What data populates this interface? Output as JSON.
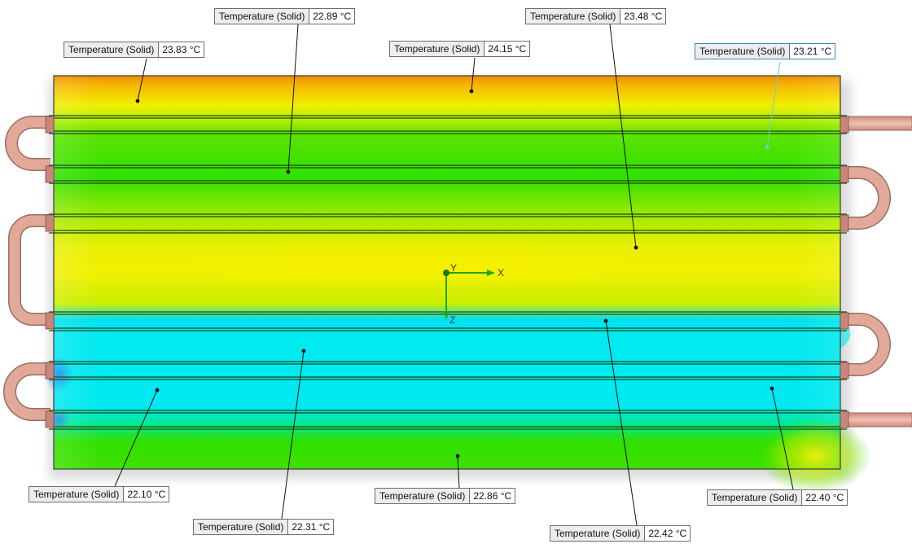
{
  "view": {
    "triad": {
      "x_label": "X",
      "y_label": "Y",
      "z_label": "Z"
    },
    "probes": [
      {
        "name": "Temperature (Solid)",
        "value": "23.83 °C"
      },
      {
        "name": "Temperature (Solid)",
        "value": "22.89 °C"
      },
      {
        "name": "Temperature (Solid)",
        "value": "24.15 °C"
      },
      {
        "name": "Temperature (Solid)",
        "value": "23.48 °C"
      },
      {
        "name": "Temperature (Solid)",
        "value": "23.21 °C"
      },
      {
        "name": "Temperature (Solid)",
        "value": "22.10 °C"
      },
      {
        "name": "Temperature (Solid)",
        "value": "22.31 °C"
      },
      {
        "name": "Temperature (Solid)",
        "value": "22.86 °C"
      },
      {
        "name": "Temperature (Solid)",
        "value": "22.42 °C"
      },
      {
        "name": "Temperature (Solid)",
        "value": "22.40 °C"
      }
    ]
  },
  "colors": {
    "hot": "#f08a00",
    "warm": "#f0f000",
    "mid": "#33e000",
    "cool": "#00e8f0",
    "cold": "#1e78f0",
    "pipe": "#e2a99a",
    "pipe_edge": "#9a6e64",
    "selected_leader": "#6ec8e6"
  }
}
